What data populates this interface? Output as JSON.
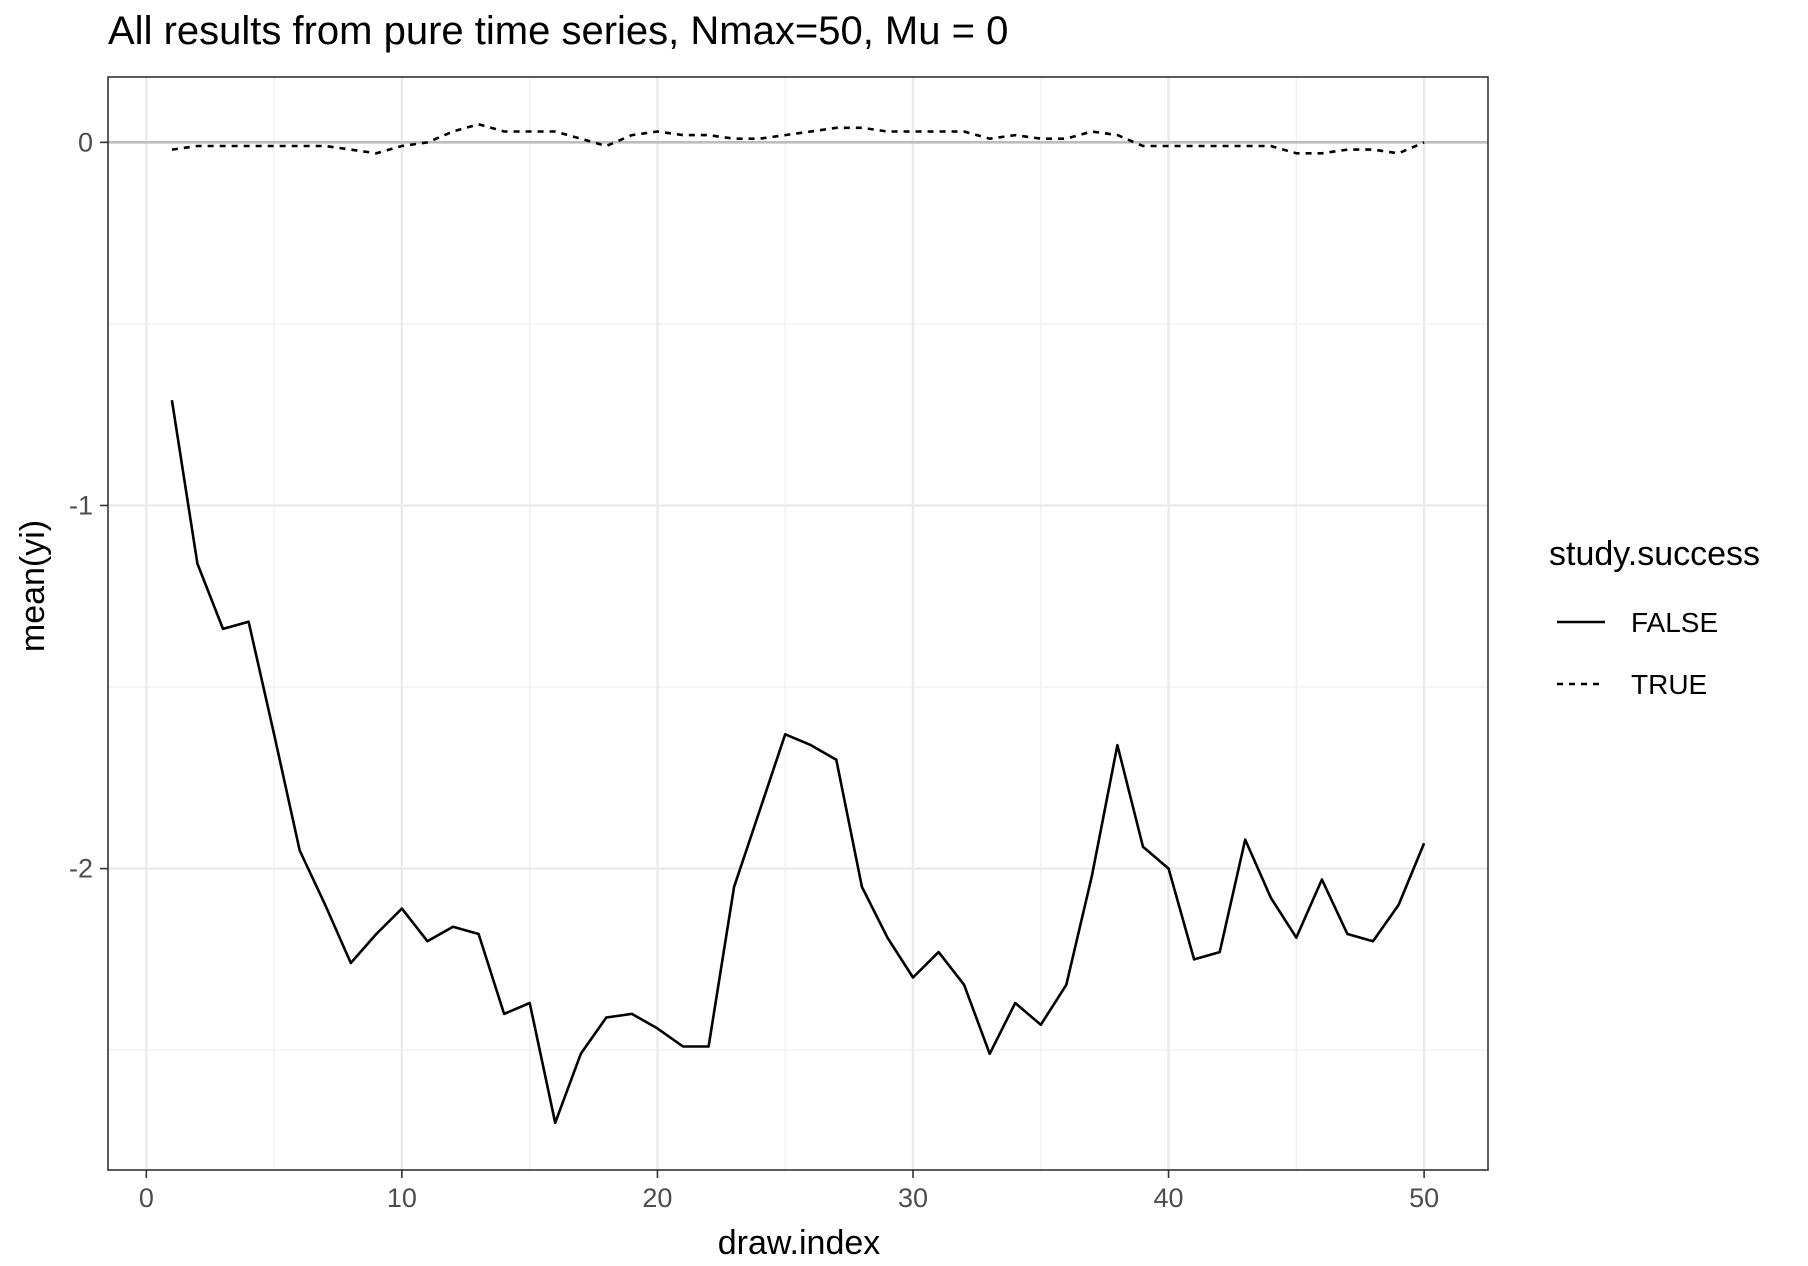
{
  "chart_data": {
    "type": "line",
    "title": "All results from pure time series, Nmax=50, Mu = 0",
    "xlabel": "draw.index",
    "ylabel": "mean(yi)",
    "xlim": [
      -1.5,
      52.5
    ],
    "ylim": [
      -2.83,
      0.18
    ],
    "x_ticks": [
      0,
      10,
      20,
      30,
      40,
      50
    ],
    "x_tick_labels": [
      "0",
      "10",
      "20",
      "30",
      "40",
      "50"
    ],
    "y_ticks": [
      0,
      -1,
      -2
    ],
    "y_tick_labels": [
      "0",
      "-1",
      "-2"
    ],
    "reference_line": {
      "y": 0,
      "color": "#bdbdbd"
    },
    "grid": true,
    "legend": {
      "title": "study.success",
      "position": "right"
    },
    "x": [
      1,
      2,
      3,
      4,
      5,
      6,
      7,
      8,
      9,
      10,
      11,
      12,
      13,
      14,
      15,
      16,
      17,
      18,
      19,
      20,
      21,
      22,
      23,
      24,
      25,
      26,
      27,
      28,
      29,
      30,
      31,
      32,
      33,
      34,
      35,
      36,
      37,
      38,
      39,
      40,
      41,
      42,
      43,
      44,
      45,
      46,
      47,
      48,
      49,
      50
    ],
    "series": [
      {
        "name": "FALSE",
        "linetype": "solid",
        "color": "#000000",
        "values": [
          -0.71,
          -1.16,
          -1.34,
          -1.32,
          -1.63,
          -1.95,
          -2.1,
          -2.26,
          -2.18,
          -2.11,
          -2.2,
          -2.16,
          -2.18,
          -2.4,
          -2.37,
          -2.7,
          -2.51,
          -2.41,
          -2.4,
          -2.44,
          -2.49,
          -2.49,
          -2.05,
          -1.84,
          -1.63,
          -1.66,
          -1.7,
          -2.05,
          -2.19,
          -2.3,
          -2.23,
          -2.32,
          -2.51,
          -2.37,
          -2.43,
          -2.32,
          -2.02,
          -1.66,
          -1.94,
          -2.0,
          -2.25,
          -2.23,
          -1.92,
          -2.08,
          -2.19,
          -2.03,
          -2.18,
          -2.2,
          -2.1,
          -1.93
        ]
      },
      {
        "name": "TRUE",
        "linetype": "dashed",
        "color": "#000000",
        "values": [
          -0.02,
          -0.01,
          -0.01,
          -0.01,
          -0.01,
          -0.01,
          -0.01,
          -0.02,
          -0.03,
          -0.01,
          0.0,
          0.03,
          0.05,
          0.03,
          0.03,
          0.03,
          0.01,
          -0.01,
          0.02,
          0.03,
          0.02,
          0.02,
          0.01,
          0.01,
          0.02,
          0.03,
          0.04,
          0.04,
          0.03,
          0.03,
          0.03,
          0.03,
          0.01,
          0.02,
          0.01,
          0.01,
          0.03,
          0.02,
          -0.01,
          -0.01,
          -0.01,
          -0.01,
          -0.01,
          -0.01,
          -0.03,
          -0.03,
          -0.02,
          -0.02,
          -0.03,
          0.0
        ]
      }
    ]
  }
}
